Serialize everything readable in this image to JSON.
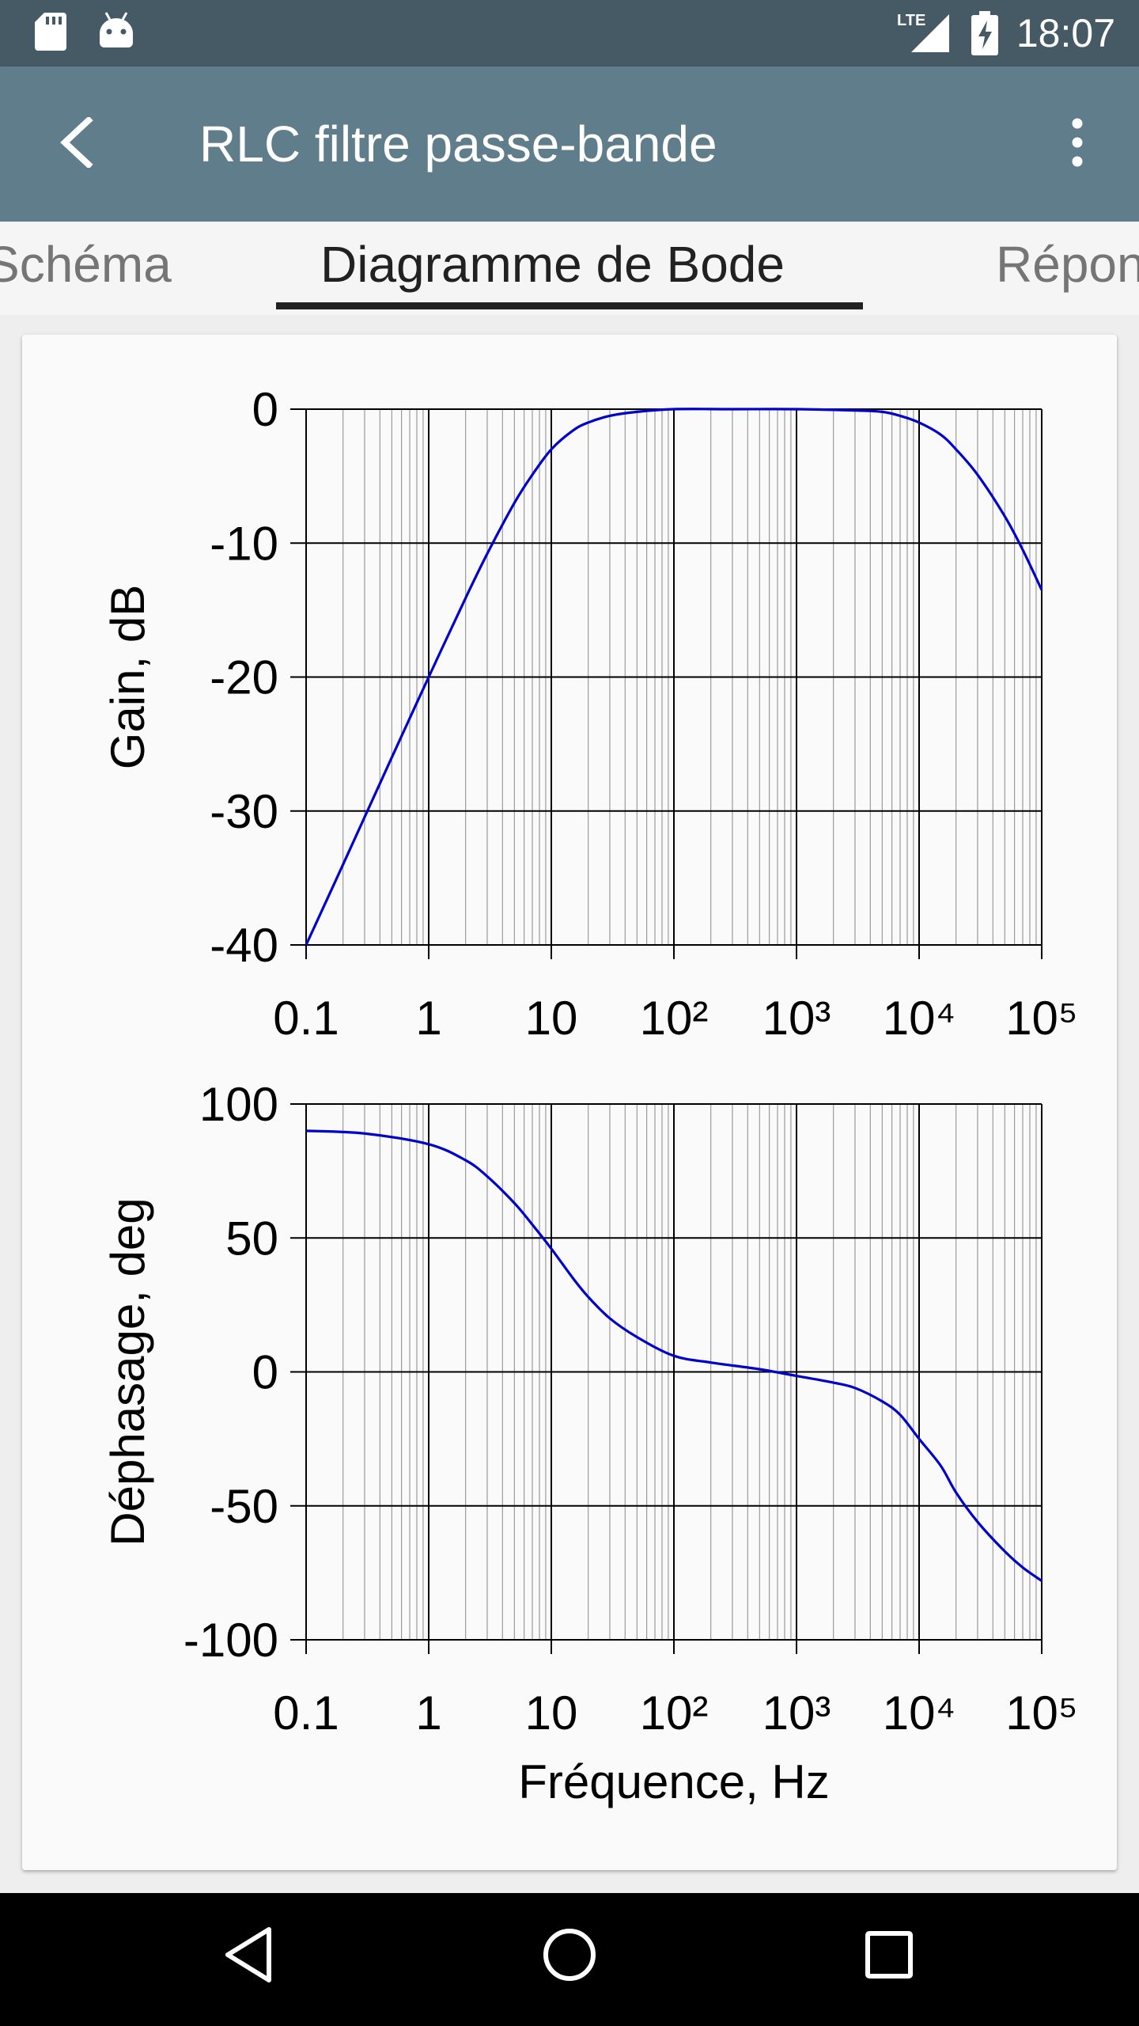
{
  "status_bar": {
    "time": "18:07",
    "network_label": "LTE",
    "icons": [
      "sd-card-icon",
      "android-icon",
      "lte-signal-icon",
      "battery-charging-icon"
    ]
  },
  "app_bar": {
    "title": "RLC filtre passe-bande",
    "back_icon": "arrow-back-icon",
    "menu_icon": "more-vert-icon"
  },
  "tabs": [
    {
      "label": "Schéma",
      "active": false
    },
    {
      "label": "Diagramme de Bode",
      "active": true
    },
    {
      "label": "Réponse",
      "active": false
    }
  ],
  "colors": {
    "status_bar": "#455a64",
    "app_bar": "#607d8b",
    "curve": "#0000cc",
    "card": "#fafafa"
  },
  "chart_data": [
    {
      "type": "line",
      "title": "",
      "ylabel": "Gain, dB",
      "xlabel": "",
      "x_scale": "log",
      "xlim": [
        0.1,
        100000
      ],
      "ylim": [
        -40,
        0
      ],
      "x_ticks": [
        0.1,
        1,
        10,
        100,
        1000,
        10000,
        100000
      ],
      "x_tick_labels": [
        "0.1",
        "1",
        "10",
        "10²",
        "10³",
        "10⁴",
        "10⁵"
      ],
      "y_ticks": [
        -40,
        -30,
        -20,
        -10,
        0
      ],
      "y_tick_labels": [
        "-40",
        "-30",
        "-20",
        "-10",
        "0"
      ],
      "grid": true,
      "series": [
        {
          "x": [
            0.1,
            0.2,
            0.5,
            1,
            2,
            3,
            5,
            7,
            10,
            15,
            20,
            30,
            50,
            100,
            300,
            1000,
            3000,
            5000,
            7000,
            10000,
            15000,
            20000,
            30000,
            50000,
            70000,
            100000
          ],
          "y": [
            -40,
            -34,
            -26,
            -20,
            -14.1,
            -10.8,
            -7,
            -4.9,
            -3,
            -1.6,
            -1,
            -0.5,
            -0.2,
            0,
            0,
            0,
            -0.1,
            -0.2,
            -0.5,
            -1,
            -1.9,
            -3,
            -4.9,
            -8,
            -10.5,
            -13.5
          ]
        }
      ]
    },
    {
      "type": "line",
      "title": "",
      "ylabel": "Déphasage, deg",
      "xlabel": "Fréquence, Hz",
      "x_scale": "log",
      "xlim": [
        0.1,
        100000
      ],
      "ylim": [
        -100,
        100
      ],
      "x_ticks": [
        0.1,
        1,
        10,
        100,
        1000,
        10000,
        100000
      ],
      "x_tick_labels": [
        "0.1",
        "1",
        "10",
        "10²",
        "10³",
        "10⁴",
        "10⁵"
      ],
      "y_ticks": [
        -100,
        -50,
        0,
        50,
        100
      ],
      "y_tick_labels": [
        "-100",
        "-50",
        "0",
        "50",
        "100"
      ],
      "grid": true,
      "series": [
        {
          "x": [
            0.1,
            0.3,
            1,
            2,
            3,
            5,
            7,
            10,
            15,
            20,
            30,
            50,
            100,
            200,
            500,
            1000,
            2000,
            3000,
            5000,
            7000,
            10000,
            15000,
            20000,
            30000,
            50000,
            70000,
            100000
          ],
          "y": [
            90,
            89,
            85,
            79,
            73,
            63,
            55,
            46,
            35,
            28,
            20,
            13,
            6,
            3.5,
            1,
            -1.5,
            -4,
            -6,
            -11,
            -16,
            -25,
            -35,
            -45,
            -56,
            -67,
            -73,
            -78
          ]
        }
      ]
    }
  ]
}
